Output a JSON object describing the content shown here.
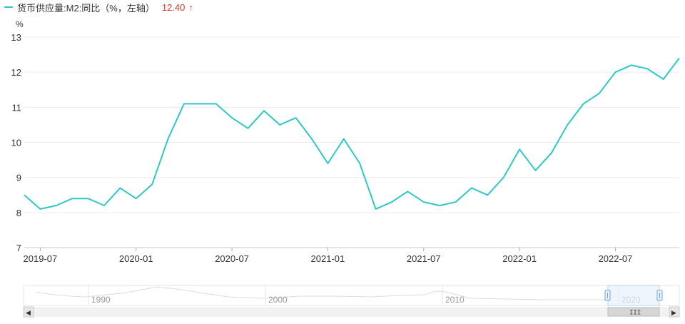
{
  "legend": {
    "series_name": "货币供应量:M2:同比（%，左轴）",
    "latest_value": "12.40",
    "trend_arrow": "↑",
    "color": "#2ec7c9",
    "value_color": "#e0392b"
  },
  "chart_data": {
    "type": "line",
    "ylabel": "%",
    "ylim": [
      7,
      13
    ],
    "yticks": [
      7,
      8,
      9,
      10,
      11,
      12,
      13
    ],
    "x_tick_labels": [
      "2019-07",
      "2020-01",
      "2020-07",
      "2021-01",
      "2021-07",
      "2022-01",
      "2022-07"
    ],
    "x_tick_months": [
      "2019-07",
      "2020-01",
      "2020-07",
      "2021-01",
      "2021-07",
      "2022-01",
      "2022-07"
    ],
    "grid": true,
    "series": [
      {
        "name": "货币供应量:M2:同比（%，左轴）",
        "x": [
          "2019-06",
          "2019-07",
          "2019-08",
          "2019-09",
          "2019-10",
          "2019-11",
          "2019-12",
          "2020-01",
          "2020-02",
          "2020-03",
          "2020-04",
          "2020-05",
          "2020-06",
          "2020-07",
          "2020-08",
          "2020-09",
          "2020-10",
          "2020-11",
          "2020-12",
          "2021-01",
          "2021-02",
          "2021-03",
          "2021-04",
          "2021-05",
          "2021-06",
          "2021-07",
          "2021-08",
          "2021-09",
          "2021-10",
          "2021-11",
          "2021-12",
          "2022-01",
          "2022-02",
          "2022-03",
          "2022-04",
          "2022-05",
          "2022-06",
          "2022-07",
          "2022-08",
          "2022-09",
          "2022-10",
          "2022-11"
        ],
        "values": [
          8.5,
          8.1,
          8.2,
          8.4,
          8.4,
          8.2,
          8.7,
          8.4,
          8.8,
          10.1,
          11.1,
          11.1,
          11.1,
          10.7,
          10.4,
          10.9,
          10.5,
          10.7,
          10.1,
          9.4,
          10.1,
          9.4,
          8.1,
          8.3,
          8.6,
          8.3,
          8.2,
          8.3,
          8.7,
          8.5,
          9.0,
          9.8,
          9.2,
          9.7,
          10.5,
          11.1,
          11.4,
          12.0,
          12.2,
          12.1,
          11.8,
          12.4
        ]
      }
    ]
  },
  "navigator": {
    "labels": [
      "1990",
      "2000",
      "2010",
      "2020"
    ],
    "left_arrow": "◀",
    "right_arrow": "▶",
    "grip": "III"
  }
}
